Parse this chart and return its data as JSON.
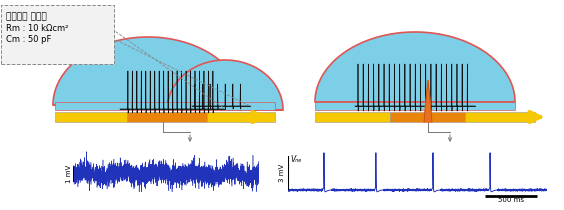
{
  "fig_width": 5.64,
  "fig_height": 2.1,
  "dpi": 100,
  "bg_color": "#ffffff",
  "cell_color": "#7dcfe8",
  "cell_edge_color": "#e05555",
  "electrode_yellow": "#f5c800",
  "electrode_orange": "#e8850a",
  "spike_color": "#111111",
  "noise_color": "#2233bb",
  "label_left": "세포막의 절연성",
  "label_rm": "Rm : 10 kΩcm²",
  "label_cm": "Cm : 50 pF",
  "label_1mv": "1 mV",
  "label_3mv": "3 mV",
  "label_vne": "Vₙₑ",
  "label_500ms": "500 ms",
  "arrow_color": "#f5c800",
  "connector_color": "#777777"
}
